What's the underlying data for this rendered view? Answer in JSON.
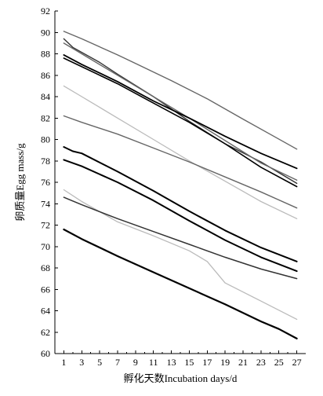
{
  "chart_data": {
    "type": "line",
    "title": "",
    "xlabel": "孵化天数Incubation days/d",
    "ylabel": "卵质量Egg mass/g",
    "xlim": [
      0,
      28
    ],
    "ylim": [
      60,
      92
    ],
    "xticks": [
      1,
      3,
      5,
      7,
      9,
      11,
      13,
      15,
      17,
      19,
      21,
      23,
      25,
      27
    ],
    "yticks": [
      60,
      62,
      64,
      66,
      68,
      70,
      72,
      74,
      76,
      78,
      80,
      82,
      84,
      86,
      88,
      90,
      92
    ],
    "grid": false,
    "legend": "none",
    "series": [
      {
        "color": "#666666",
        "width": 1.4,
        "x": [
          1,
          3,
          7,
          9,
          13,
          17,
          21,
          24,
          27
        ],
        "y": [
          90.1,
          89.4,
          87.9,
          87.1,
          85.5,
          83.8,
          81.9,
          80.5,
          79.1
        ]
      },
      {
        "color": "#333333",
        "width": 1.4,
        "x": [
          1,
          2,
          5,
          7,
          11,
          15,
          19,
          23,
          27
        ],
        "y": [
          89.4,
          88.6,
          87.2,
          86.1,
          84.0,
          81.7,
          79.6,
          77.9,
          75.9
        ]
      },
      {
        "color": "#666666",
        "width": 1.4,
        "x": [
          1,
          3,
          7,
          11,
          15,
          19,
          23,
          27
        ],
        "y": [
          89.0,
          88.0,
          86.0,
          84.0,
          82.0,
          79.9,
          77.8,
          76.2
        ]
      },
      {
        "color": "#000000",
        "width": 1.8,
        "x": [
          1,
          3,
          7,
          11,
          15,
          19,
          23,
          27
        ],
        "y": [
          87.9,
          87.0,
          85.4,
          83.6,
          82.0,
          80.3,
          78.7,
          77.3
        ]
      },
      {
        "color": "#000000",
        "width": 1.6,
        "x": [
          1,
          3,
          7,
          11,
          15,
          19,
          23,
          27
        ],
        "y": [
          87.6,
          86.8,
          85.2,
          83.4,
          81.6,
          79.6,
          77.4,
          75.6
        ]
      },
      {
        "color": "#bbbbbb",
        "width": 1.3,
        "x": [
          1,
          3,
          7,
          11,
          15,
          19,
          23,
          27
        ],
        "y": [
          85.0,
          84.0,
          82.0,
          80.0,
          78.0,
          76.1,
          74.2,
          72.6
        ]
      },
      {
        "color": "#666666",
        "width": 1.4,
        "x": [
          1,
          3,
          7,
          11,
          15,
          19,
          23,
          27
        ],
        "y": [
          82.2,
          81.6,
          80.5,
          79.2,
          77.9,
          76.5,
          75.1,
          73.6
        ]
      },
      {
        "color": "#000000",
        "width": 2.0,
        "x": [
          1,
          2,
          3,
          7,
          11,
          15,
          19,
          23,
          27
        ],
        "y": [
          79.3,
          78.9,
          78.7,
          77.0,
          75.2,
          73.3,
          71.5,
          69.9,
          68.6
        ]
      },
      {
        "color": "#000000",
        "width": 2.0,
        "x": [
          1,
          3,
          7,
          11,
          15,
          19,
          23,
          27
        ],
        "y": [
          78.1,
          77.5,
          76.0,
          74.3,
          72.4,
          70.6,
          69.0,
          67.7
        ]
      },
      {
        "color": "#bbbbbb",
        "width": 1.3,
        "x": [
          1,
          3,
          7,
          11,
          15,
          17,
          19,
          23,
          27
        ],
        "y": [
          75.3,
          74.2,
          72.3,
          71.0,
          69.6,
          68.6,
          66.6,
          64.9,
          63.2
        ]
      },
      {
        "color": "#333333",
        "width": 1.5,
        "x": [
          1,
          3,
          7,
          11,
          15,
          19,
          23,
          27
        ],
        "y": [
          74.6,
          73.9,
          72.6,
          71.4,
          70.2,
          69.0,
          67.9,
          67.0
        ]
      },
      {
        "color": "#000000",
        "width": 2.2,
        "x": [
          1,
          3,
          7,
          11,
          15,
          19,
          23,
          25,
          27
        ],
        "y": [
          71.6,
          70.7,
          69.1,
          67.6,
          66.1,
          64.6,
          63.0,
          62.3,
          61.4
        ]
      }
    ]
  }
}
